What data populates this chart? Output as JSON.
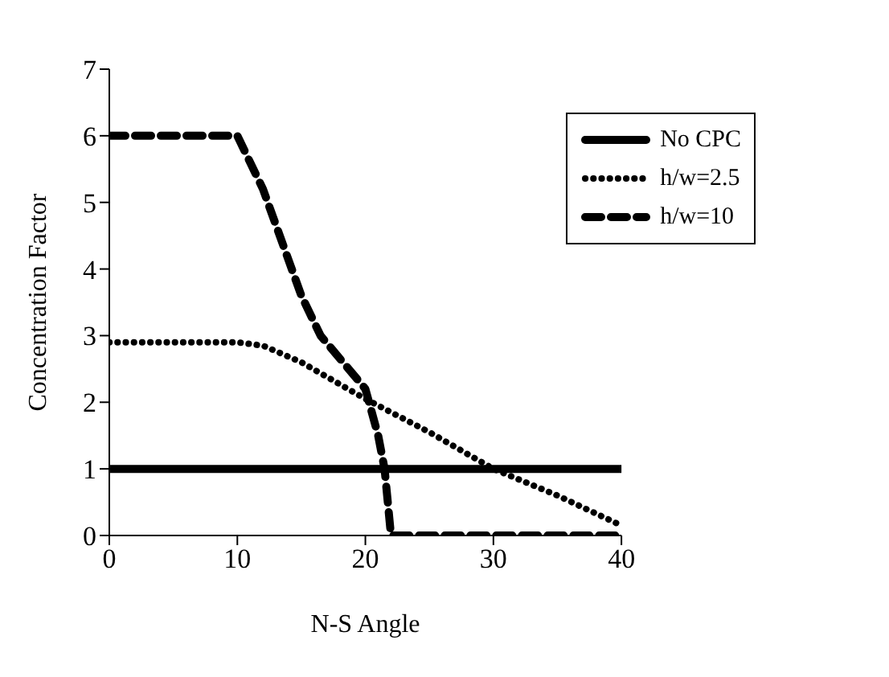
{
  "chart_data": {
    "type": "line",
    "xlabel": "N-S Angle",
    "ylabel": "Concentration Factor",
    "xlim": [
      0,
      40
    ],
    "xticks": [
      0,
      10,
      20,
      30,
      40
    ],
    "ylim": [
      0,
      7
    ],
    "yticks": [
      0,
      1,
      2,
      3,
      4,
      5,
      6,
      7
    ],
    "legend": "top right",
    "marker": "none",
    "series": [
      {
        "name": "No CPC",
        "color": "#000000",
        "line_style": "solid",
        "x": [
          0,
          40
        ],
        "values": [
          1,
          1
        ]
      },
      {
        "name": "h/w=2.5",
        "color": "#000000",
        "line_style": "dotted",
        "x": [
          0,
          5,
          10,
          12,
          15,
          20,
          25,
          30,
          35,
          40
        ],
        "values": [
          2.9,
          2.9,
          2.9,
          2.85,
          2.6,
          2.05,
          1.55,
          1.0,
          0.6,
          0.15
        ]
      },
      {
        "name": "h/w=10",
        "color": "#000000",
        "line_style": "dashed",
        "x": [
          0,
          10,
          12,
          15,
          16.5,
          20,
          21,
          21.5,
          22,
          30,
          40
        ],
        "values": [
          6,
          6,
          5.2,
          3.6,
          3.0,
          2.2,
          1.5,
          1.0,
          0,
          0,
          0
        ]
      }
    ]
  }
}
